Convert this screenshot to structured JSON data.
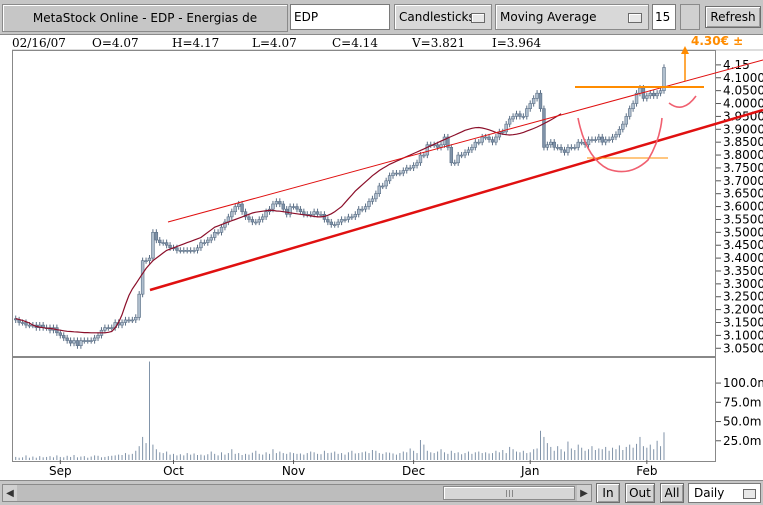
{
  "toolbar": {
    "title": "MetaStock Online - EDP - Energias de",
    "symbol": "EDP",
    "chart_type": "Candlesticks",
    "indicator": "Moving Average",
    "period": "15",
    "refresh_label": "Refresh"
  },
  "ohlc": {
    "date": "02/16/07",
    "open": "O=4.07",
    "high": "H=4.17",
    "low": "L=4.07",
    "close": "C=4.14",
    "volume": "V=3.821",
    "indicator_value": "I=3.964"
  },
  "target_annotation": "4.30€ ±",
  "bottom": {
    "in_label": "In",
    "out_label": "Out",
    "all_label": "All",
    "interval": "Daily"
  },
  "colors": {
    "up_candle": "#b0bfce",
    "down_candle": "#7f92a8",
    "moving_average": "#8b0f2a",
    "trendline": "#e01010",
    "target": "#ff8c00",
    "cup": "#f06070"
  },
  "chart_data": {
    "type": "candlestick",
    "price_axis": {
      "ticks": [
        3.05,
        3.1,
        3.15,
        3.2,
        3.25,
        3.3,
        3.35,
        3.4,
        3.45,
        3.5,
        3.55,
        3.6,
        3.65,
        3.7,
        3.75,
        3.8,
        3.85,
        3.9,
        3.95,
        4.0,
        4.05,
        4.1,
        4.15
      ],
      "tick_labels": [
        "3.0500",
        "3.1000",
        "3.1500",
        "3.2000",
        "3.2500",
        "3.3000",
        "3.3500",
        "3.4000",
        "3.4500",
        "3.5000",
        "3.5500",
        "3.6000",
        "3.6500",
        "3.7000",
        "3.7500",
        "3.8000",
        "3.8500",
        "3.9000",
        "3.9500",
        "4.0000",
        "4.0500",
        "4.1000",
        "4.15"
      ],
      "range": [
        3.02,
        4.2
      ]
    },
    "volume_axis": {
      "ticks": [
        25000000,
        50000000,
        75000000,
        100000000
      ],
      "tick_labels": [
        "25.0m",
        "50.0m",
        "75.0m",
        "100.0m"
      ],
      "range": [
        0,
        130000000
      ]
    },
    "x_labels": [
      "Sep",
      "Oct",
      "Nov",
      "Dec",
      "Jan",
      "Feb"
    ],
    "x_label_bar_index": [
      13,
      46,
      81,
      116,
      150,
      184
    ],
    "bars": 200,
    "close": [
      3.16,
      3.15,
      3.15,
      3.14,
      3.14,
      3.14,
      3.13,
      3.14,
      3.13,
      3.13,
      3.12,
      3.13,
      3.11,
      3.1,
      3.09,
      3.08,
      3.07,
      3.08,
      3.06,
      3.08,
      3.08,
      3.08,
      3.08,
      3.09,
      3.1,
      3.12,
      3.13,
      3.13,
      3.13,
      3.15,
      3.14,
      3.15,
      3.16,
      3.16,
      3.16,
      3.17,
      3.26,
      3.39,
      3.39,
      3.4,
      3.5,
      3.47,
      3.46,
      3.46,
      3.45,
      3.44,
      3.44,
      3.43,
      3.43,
      3.43,
      3.43,
      3.43,
      3.43,
      3.44,
      3.46,
      3.46,
      3.47,
      3.48,
      3.5,
      3.5,
      3.52,
      3.54,
      3.56,
      3.58,
      3.6,
      3.61,
      3.58,
      3.56,
      3.55,
      3.54,
      3.54,
      3.55,
      3.56,
      3.58,
      3.59,
      3.61,
      3.62,
      3.61,
      3.59,
      3.57,
      3.6,
      3.6,
      3.59,
      3.58,
      3.57,
      3.57,
      3.57,
      3.58,
      3.57,
      3.57,
      3.55,
      3.54,
      3.53,
      3.53,
      3.54,
      3.55,
      3.55,
      3.56,
      3.56,
      3.57,
      3.59,
      3.59,
      3.6,
      3.62,
      3.63,
      3.65,
      3.68,
      3.68,
      3.7,
      3.72,
      3.73,
      3.73,
      3.73,
      3.74,
      3.75,
      3.75,
      3.76,
      3.77,
      3.8,
      3.8,
      3.84,
      3.84,
      3.84,
      3.83,
      3.84,
      3.87,
      3.83,
      3.77,
      3.77,
      3.8,
      3.8,
      3.81,
      3.82,
      3.83,
      3.85,
      3.85,
      3.87,
      3.87,
      3.86,
      3.85,
      3.87,
      3.89,
      3.89,
      3.92,
      3.94,
      3.95,
      3.96,
      3.95,
      3.95,
      3.98,
      4.0,
      4.02,
      4.04,
      3.98,
      3.83,
      3.84,
      3.85,
      3.83,
      3.83,
      3.82,
      3.81,
      3.83,
      3.83,
      3.83,
      3.85,
      3.85,
      3.84,
      3.86,
      3.86,
      3.86,
      3.87,
      3.85,
      3.86,
      3.86,
      3.87,
      3.88,
      3.9,
      3.92,
      3.95,
      3.98,
      4.0,
      4.04,
      4.06,
      4.02,
      4.03,
      4.04,
      4.03,
      4.04,
      4.05,
      4.14
    ],
    "moving_average": [
      3.165,
      3.162,
      3.158,
      3.153,
      3.148,
      3.14,
      3.135,
      3.132,
      3.13,
      3.128,
      3.127,
      3.125,
      3.122,
      3.12,
      3.118,
      3.116,
      3.115,
      3.114,
      3.113,
      3.112,
      3.111,
      3.111,
      3.11,
      3.11,
      3.11,
      3.11,
      3.11,
      3.112,
      3.115,
      3.13,
      3.15,
      3.18,
      3.22,
      3.255,
      3.28,
      3.3,
      3.32,
      3.34,
      3.36,
      3.375,
      3.39,
      3.4,
      3.41,
      3.42,
      3.43,
      3.435,
      3.44,
      3.445,
      3.45,
      3.455,
      3.46,
      3.465,
      3.47,
      3.475,
      3.48,
      3.49,
      3.5,
      3.51,
      3.52,
      3.525,
      3.53,
      3.535,
      3.54,
      3.545,
      3.55,
      3.555,
      3.56,
      3.565,
      3.57,
      3.575,
      3.578,
      3.58,
      3.582,
      3.584,
      3.585,
      3.585,
      3.583,
      3.582,
      3.58,
      3.578,
      3.576,
      3.574,
      3.572,
      3.57,
      3.568,
      3.566,
      3.564,
      3.562,
      3.56,
      3.56,
      3.562,
      3.566,
      3.572,
      3.58,
      3.59,
      3.6,
      3.615,
      3.63,
      3.645,
      3.66,
      3.672,
      3.684,
      3.696,
      3.708,
      3.72,
      3.73,
      3.74,
      3.748,
      3.756,
      3.764,
      3.77,
      3.776,
      3.782,
      3.788,
      3.794,
      3.8,
      3.806,
      3.812,
      3.818,
      3.824,
      3.83,
      3.836,
      3.842,
      3.848,
      3.854,
      3.86,
      3.866,
      3.872,
      3.878,
      3.884,
      3.89,
      3.896,
      3.9,
      3.904,
      3.906,
      3.907,
      3.905,
      3.902,
      3.898,
      3.893,
      3.888,
      3.884,
      3.881,
      3.879,
      3.878,
      3.879,
      3.881,
      3.884,
      3.888,
      3.893,
      3.898,
      3.903,
      3.909,
      3.915,
      3.922,
      3.929,
      3.936,
      3.944,
      3.952,
      3.96,
      3.964,
      3.964,
      3.964,
      3.964,
      3.964,
      3.964,
      3.964,
      3.964,
      3.964,
      3.964,
      3.964,
      3.964,
      3.964,
      3.964,
      3.964,
      3.964,
      3.964,
      3.964,
      3.964,
      3.964,
      3.964,
      3.964,
      3.964,
      3.964,
      3.964,
      3.964,
      3.964,
      3.964,
      3.964,
      3.964,
      3.964,
      3.964,
      3.964,
      3.964,
      3.964,
      3.964,
      3.964,
      3.964,
      3.964,
      3.964
    ],
    "volume": [
      4000000,
      3000000,
      3500000,
      6000000,
      3000000,
      4500000,
      3000000,
      5000000,
      3500000,
      4000000,
      5000000,
      3500000,
      6000000,
      4000000,
      3500000,
      5500000,
      4000000,
      6500000,
      3500000,
      4500000,
      5000000,
      3000000,
      4500000,
      6000000,
      5500000,
      3500000,
      4000000,
      5000000,
      5500000,
      6000000,
      7000000,
      6500000,
      9000000,
      7000000,
      8000000,
      12000000,
      18000000,
      30000000,
      22000000,
      128000000,
      20000000,
      14000000,
      10000000,
      9000000,
      11000000,
      7000000,
      8000000,
      6000000,
      7500000,
      6000000,
      9000000,
      7000000,
      8500000,
      6500000,
      7000000,
      6000000,
      7500000,
      11000000,
      8000000,
      6000000,
      10000000,
      7000000,
      9000000,
      14000000,
      8000000,
      9000000,
      6500000,
      8000000,
      7000000,
      9500000,
      12000000,
      8000000,
      7000000,
      10000000,
      8000000,
      14000000,
      9000000,
      11000000,
      9000000,
      8000000,
      10000000,
      9000000,
      8000000,
      8500000,
      7000000,
      9000000,
      11000000,
      10000000,
      8000000,
      7500000,
      12000000,
      9000000,
      9500000,
      11000000,
      8000000,
      9000000,
      7000000,
      10000000,
      12000000,
      8500000,
      9000000,
      10000000,
      11000000,
      9000000,
      13000000,
      12000000,
      9000000,
      8000000,
      10000000,
      9500000,
      8500000,
      7000000,
      9000000,
      11000000,
      10000000,
      15000000,
      12000000,
      9000000,
      26000000,
      20000000,
      12000000,
      10000000,
      9000000,
      11000000,
      14000000,
      10000000,
      8000000,
      12000000,
      9000000,
      10000000,
      7500000,
      9000000,
      11000000,
      8000000,
      10000000,
      11000000,
      9000000,
      10000000,
      8500000,
      9000000,
      12000000,
      10000000,
      13000000,
      9000000,
      17000000,
      14000000,
      11000000,
      10000000,
      12000000,
      9000000,
      10000000,
      14000000,
      15000000,
      38000000,
      30000000,
      22000000,
      17000000,
      12000000,
      18000000,
      14000000,
      11000000,
      24000000,
      15000000,
      13000000,
      20000000,
      16000000,
      12000000,
      14000000,
      18000000,
      13000000,
      15000000,
      14000000,
      17000000,
      12000000,
      16000000,
      14000000,
      19000000,
      13000000,
      17000000,
      20000000,
      16000000,
      21000000,
      30000000,
      18000000,
      16000000,
      20000000,
      14000000,
      25000000,
      18000000,
      36000000
    ]
  }
}
